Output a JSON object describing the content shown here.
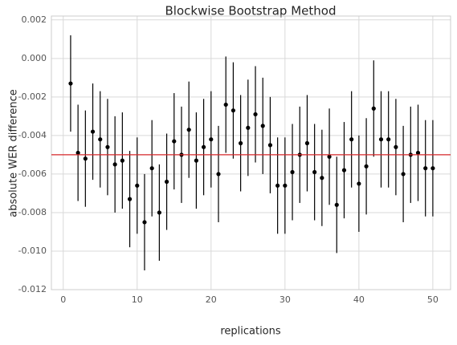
{
  "chart_data": {
    "type": "errorbar",
    "title": "Blockwise Bootstrap Method",
    "x_label": "replications",
    "y_label": "absolute WER difference",
    "x": [
      1,
      2,
      3,
      4,
      5,
      6,
      7,
      8,
      9,
      10,
      11,
      12,
      13,
      14,
      15,
      16,
      17,
      18,
      19,
      20,
      21,
      22,
      23,
      24,
      25,
      26,
      27,
      28,
      29,
      30,
      31,
      32,
      33,
      34,
      35,
      36,
      37,
      38,
      39,
      40,
      41,
      42,
      43,
      44,
      45,
      46,
      47,
      48,
      49,
      50
    ],
    "values": [
      -0.0013,
      -0.0049,
      -0.0052,
      -0.0038,
      -0.0042,
      -0.0046,
      -0.0055,
      -0.0053,
      -0.0073,
      -0.0066,
      -0.0085,
      -0.0057,
      -0.008,
      -0.0064,
      -0.0043,
      -0.005,
      -0.0037,
      -0.0053,
      -0.0046,
      -0.0042,
      -0.006,
      -0.0024,
      -0.0027,
      -0.0044,
      -0.0036,
      -0.0029,
      -0.0035,
      -0.0045,
      -0.0066,
      -0.0066,
      -0.0059,
      -0.005,
      -0.0044,
      -0.0059,
      -0.0062,
      -0.0051,
      -0.0076,
      -0.0058,
      -0.0042,
      -0.0065,
      -0.0056,
      -0.0026,
      -0.0042,
      -0.0042,
      -0.0046,
      -0.006,
      -0.005,
      -0.0049,
      -0.0057,
      -0.0057
    ],
    "errors": [
      0.0025,
      0.0025,
      0.0025,
      0.0025,
      0.0025,
      0.0025,
      0.0025,
      0.0025,
      0.0025,
      0.0025,
      0.0025,
      0.0025,
      0.0025,
      0.0025,
      0.0025,
      0.0025,
      0.0025,
      0.0025,
      0.0025,
      0.0025,
      0.0025,
      0.0025,
      0.0025,
      0.0025,
      0.0025,
      0.0025,
      0.0025,
      0.0025,
      0.0025,
      0.0025,
      0.0025,
      0.0025,
      0.0025,
      0.0025,
      0.0025,
      0.0025,
      0.0025,
      0.0025,
      0.0025,
      0.0025,
      0.0025,
      0.0025,
      0.0025,
      0.0025,
      0.0025,
      0.0025,
      0.0025,
      0.0025,
      0.0025,
      0.0025
    ],
    "color": "#000000",
    "hline": -0.005,
    "hline_color": "#d62728",
    "xlim": [
      -1.6,
      52.4
    ],
    "xticks": [
      0,
      10,
      20,
      30,
      40,
      50
    ],
    "ylim": [
      -0.012,
      0.0022
    ],
    "yticks": [
      -0.012,
      {
        "value": -0.01,
        "label": "-0.010"
      },
      -0.008,
      -0.006,
      -0.004,
      -0.002,
      {
        "value": 0,
        "label": "0.000"
      },
      0.002
    ],
    "grid": true
  }
}
